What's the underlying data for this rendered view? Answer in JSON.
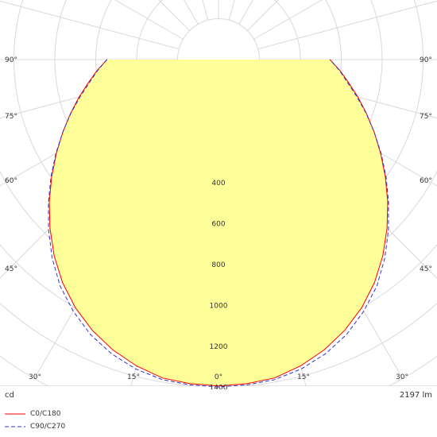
{
  "chart_data": {
    "type": "polar",
    "title": "",
    "radial_unit": "cd",
    "radial_ticks": [
      400,
      600,
      800,
      1000,
      1200,
      1400
    ],
    "angle_labels": {
      "side_left": [
        "90°",
        "75°",
        "60°",
        "45°"
      ],
      "side_right": [
        "90°",
        "75°",
        "60°",
        "45°"
      ],
      "bottom": [
        "30°",
        "15°",
        "0°",
        "15°",
        "30°"
      ]
    },
    "flux": "2197 lm",
    "fill_color": "#ffff99",
    "grid": true,
    "series": [
      {
        "name": "C0/C180",
        "color": "#ff0000",
        "dash": "solid",
        "angles_deg": [
          0,
          5,
          10,
          15,
          20,
          25,
          30,
          35,
          40,
          45,
          50,
          55,
          60,
          65,
          70,
          75,
          80,
          85,
          90
        ],
        "values_cd": [
          1395,
          1390,
          1380,
          1350,
          1310,
          1260,
          1200,
          1130,
          1050,
          965,
          880,
          795,
          715,
          640,
          570,
          505,
          445,
          395,
          345
        ]
      },
      {
        "name": "C90/C270",
        "color": "#3333cc",
        "dash": "dashed",
        "angles_deg": [
          0,
          5,
          10,
          15,
          20,
          25,
          30,
          35,
          40,
          45,
          50,
          55,
          60,
          65,
          70,
          75,
          80,
          85,
          90
        ],
        "values_cd": [
          1400,
          1396,
          1388,
          1365,
          1330,
          1282,
          1220,
          1150,
          1065,
          975,
          885,
          800,
          718,
          640,
          568,
          500,
          440,
          392,
          345
        ]
      }
    ]
  },
  "footer": {
    "unit": "cd",
    "flux": "2197 lm"
  }
}
